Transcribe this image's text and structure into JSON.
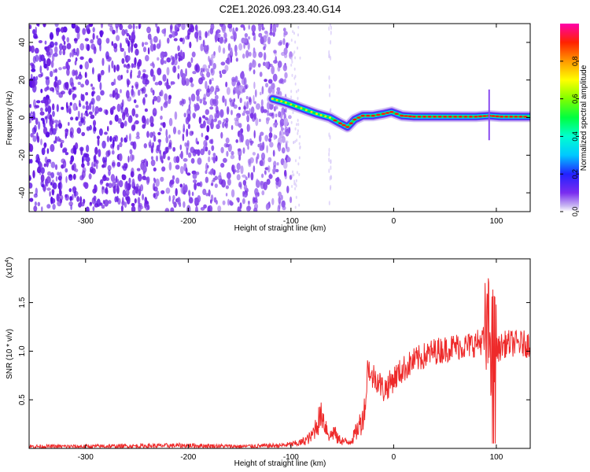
{
  "title": "C2E1.2026.093.23.40.G14",
  "colors": {
    "snr_line": "#ee2a2a",
    "noise_purple": "#6a1de0",
    "axis": "#000000"
  },
  "chart_data": [
    {
      "type": "heatmap",
      "name": "spectrogram",
      "xlabel": "Height of straight line (km)",
      "ylabel": "Frequency (Hz)",
      "xlim": [
        -355,
        133
      ],
      "ylim": [
        -50,
        50
      ],
      "xticks": [
        -300,
        -200,
        -100,
        0,
        100
      ],
      "yticks": [
        -40,
        -20,
        0,
        20,
        40
      ],
      "noise_region": {
        "x_range": [
          -355,
          -100
        ],
        "freq_range": [
          -50,
          50
        ]
      },
      "signal_ridge": [
        {
          "x": -118,
          "f": 10
        },
        {
          "x": -105,
          "f": 8
        },
        {
          "x": -95,
          "f": 6
        },
        {
          "x": -85,
          "f": 4
        },
        {
          "x": -75,
          "f": 2
        },
        {
          "x": -62,
          "f": 0
        },
        {
          "x": -52,
          "f": -3
        },
        {
          "x": -45,
          "f": -5
        },
        {
          "x": -38,
          "f": -1
        },
        {
          "x": -30,
          "f": 1
        },
        {
          "x": -20,
          "f": 1
        },
        {
          "x": -10,
          "f": 2
        },
        {
          "x": -2,
          "f": 3
        },
        {
          "x": 8,
          "f": 1
        },
        {
          "x": 20,
          "f": 0.5
        },
        {
          "x": 40,
          "f": 0.5
        },
        {
          "x": 60,
          "f": 0.5
        },
        {
          "x": 80,
          "f": 0.5
        },
        {
          "x": 93,
          "f": 1
        },
        {
          "x": 105,
          "f": 0.5
        },
        {
          "x": 133,
          "f": 0.5
        }
      ],
      "colorbar": {
        "label": "Normalized spectral amplitude",
        "range": [
          0,
          1
        ],
        "ticks": [
          "0.0",
          "0.2",
          "0.4",
          "0.6",
          "0.8"
        ],
        "tick_values": [
          0,
          0.2,
          0.4,
          0.6,
          0.8
        ]
      }
    },
    {
      "type": "line",
      "name": "snr",
      "xlabel": "Height of straight line (km)",
      "ylabel": "SNR (10 * v/v)",
      "y_multiplier": "(x10",
      "y_multiplier_exp": "4",
      "y_multiplier_close": ")",
      "xlim": [
        -355,
        133
      ],
      "ylim": [
        0,
        1.95
      ],
      "xticks": [
        -300,
        -200,
        -100,
        0,
        100
      ],
      "yticks": [
        "0.5",
        "1.0",
        "1.5"
      ],
      "ytick_values": [
        0.5,
        1.0,
        1.5
      ],
      "series": [
        {
          "x": [
            -355,
            -300,
            -200,
            -150,
            -110,
            -100,
            -90,
            -80,
            -75,
            -70,
            -65,
            -62,
            -58,
            -55,
            -50,
            -45,
            -40,
            -35,
            -30,
            -27,
            -25,
            -22,
            -20,
            -15,
            -10,
            -5,
            0,
            10,
            20,
            30,
            40,
            50,
            60,
            70,
            80,
            85,
            90,
            92,
            95,
            98,
            100,
            105,
            110,
            120,
            133
          ],
          "y": [
            0.02,
            0.02,
            0.03,
            0.02,
            0.03,
            0.04,
            0.06,
            0.12,
            0.25,
            0.35,
            0.2,
            0.12,
            0.18,
            0.1,
            0.08,
            0.06,
            0.1,
            0.2,
            0.32,
            0.5,
            0.9,
            0.7,
            0.75,
            0.7,
            0.6,
            0.65,
            0.72,
            0.82,
            0.9,
            0.95,
            1.0,
            1.02,
            1.05,
            1.05,
            1.08,
            1.1,
            1.15,
            1.2,
            1.1,
            1.05,
            1.0,
            1.05,
            1.08,
            1.08,
            1.07
          ]
        }
      ]
    }
  ]
}
